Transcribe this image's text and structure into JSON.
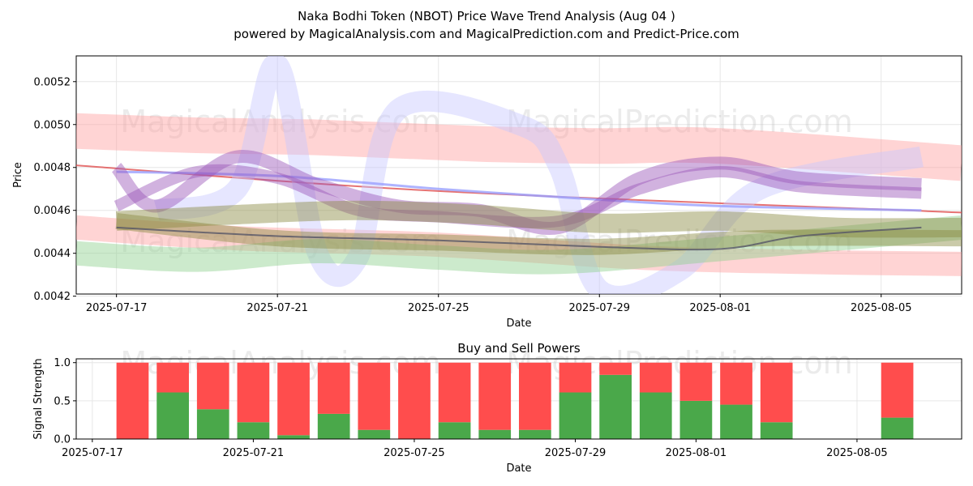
{
  "title_line1": "Naka Bodhi Token (NBOT) Price Wave Trend Analysis (Aug 04 )",
  "title_line2": "powered by MagicalAnalysis.com and MagicalPrediction.com and Predict-Price.com",
  "watermarks": [
    "MagicalAnalysis.com",
    "MagicalPrediction.com"
  ],
  "colors": {
    "buy": "#4aa84a",
    "sell": "#ff4d4d",
    "red_band": "#ff9f9f",
    "blue_band": "#c8c8ff",
    "green_band": "#8fd08f",
    "purple_band": "#9a55b8",
    "olive_band": "#8a8a40"
  },
  "chart_data": [
    {
      "type": "line",
      "title": "",
      "xlabel": "Date",
      "ylabel": "Price",
      "ylim": [
        0.00421,
        0.00532
      ],
      "xlim": [
        "2025-07-16",
        "2025-08-07"
      ],
      "xticks": [
        "2025-07-17",
        "2025-07-21",
        "2025-07-25",
        "2025-07-29",
        "2025-08-01",
        "2025-08-05"
      ],
      "yticks": [
        "0.0042",
        "0.0044",
        "0.0046",
        "0.0048",
        "0.0050",
        "0.0052"
      ],
      "grid": true,
      "series": [
        {
          "name": "red wide band",
          "color": "#ff9f9f",
          "width": 44,
          "x": [
            "2025-07-16",
            "2025-07-19",
            "2025-07-22",
            "2025-07-26",
            "2025-07-29",
            "2025-08-01",
            "2025-08-07"
          ],
          "y": [
            0.00497,
            0.00495,
            0.00494,
            0.00491,
            0.0049,
            0.0049,
            0.00482
          ]
        },
        {
          "name": "red lower band",
          "color": "#ff9f9f",
          "width": 30,
          "x": [
            "2025-07-16",
            "2025-07-20",
            "2025-07-25",
            "2025-07-30",
            "2025-08-03",
            "2025-08-07"
          ],
          "y": [
            0.00452,
            0.00447,
            0.00444,
            0.00438,
            0.00436,
            0.00435
          ]
        },
        {
          "name": "red trend line",
          "color": "#e05050",
          "width": 2,
          "x": [
            "2025-07-16",
            "2025-07-25",
            "2025-08-07"
          ],
          "y": [
            0.00481,
            0.00469,
            0.00459
          ]
        },
        {
          "name": "blue wave",
          "color": "#c8c8ff",
          "width": 26,
          "x": [
            "2025-07-18",
            "2025-07-20",
            "2025-07-21",
            "2025-07-22",
            "2025-07-23",
            "2025-07-24",
            "2025-07-27",
            "2025-07-28",
            "2025-07-29",
            "2025-07-31",
            "2025-08-02",
            "2025-08-06"
          ],
          "y": [
            0.0046,
            0.0047,
            0.00528,
            0.0044,
            0.00438,
            0.00507,
            0.005,
            0.0048,
            0.00423,
            0.00432,
            0.0047,
            0.00485
          ]
        },
        {
          "name": "blue trend line",
          "color": "#9aa0ff",
          "width": 3,
          "x": [
            "2025-07-17",
            "2025-07-21",
            "2025-07-25",
            "2025-07-29",
            "2025-08-01",
            "2025-08-06"
          ],
          "y": [
            0.00478,
            0.00476,
            0.0047,
            0.00465,
            0.00462,
            0.0046
          ]
        },
        {
          "name": "green band",
          "color": "#8fd08f",
          "width": 30,
          "x": [
            "2025-07-16",
            "2025-07-19",
            "2025-07-22",
            "2025-07-25",
            "2025-07-28",
            "2025-08-01",
            "2025-08-07"
          ],
          "y": [
            0.0044,
            0.00437,
            0.00441,
            0.00438,
            0.00436,
            0.00442,
            0.00452
          ]
        },
        {
          "name": "purple wave 1",
          "color": "#9a55b8",
          "width": 16,
          "x": [
            "2025-07-17",
            "2025-07-18",
            "2025-07-20",
            "2025-07-22",
            "2025-07-24",
            "2025-07-26",
            "2025-07-28",
            "2025-07-30",
            "2025-08-01",
            "2025-08-03",
            "2025-08-06"
          ],
          "y": [
            0.0048,
            0.00462,
            0.00485,
            0.00472,
            0.00462,
            0.0046,
            0.00452,
            0.00475,
            0.00482,
            0.00475,
            0.00472
          ]
        },
        {
          "name": "purple wave 2",
          "color": "#9a55b8",
          "width": 14,
          "x": [
            "2025-07-17",
            "2025-07-19",
            "2025-07-21",
            "2025-07-23",
            "2025-07-25",
            "2025-07-28",
            "2025-07-30",
            "2025-08-01",
            "2025-08-03",
            "2025-08-06"
          ],
          "y": [
            0.00462,
            0.00478,
            0.00475,
            0.0046,
            0.00457,
            0.00455,
            0.0047,
            0.00478,
            0.00471,
            0.00468
          ]
        },
        {
          "name": "olive band",
          "color": "#8a8a40",
          "width": 24,
          "x": [
            "2025-07-17",
            "2025-07-20",
            "2025-07-23",
            "2025-07-26",
            "2025-07-29",
            "2025-08-01",
            "2025-08-04",
            "2025-08-07"
          ],
          "y": [
            0.00455,
            0.00458,
            0.0046,
            0.00458,
            0.00454,
            0.00455,
            0.00452,
            0.00452
          ]
        },
        {
          "name": "olive lower band",
          "color": "#8a8a40",
          "width": 20,
          "x": [
            "2025-07-17",
            "2025-07-21",
            "2025-07-25",
            "2025-07-29",
            "2025-08-02",
            "2025-08-07"
          ],
          "y": [
            0.00455,
            0.00447,
            0.00445,
            0.00443,
            0.00447,
            0.00447
          ]
        },
        {
          "name": "dark trend line",
          "color": "#555566",
          "width": 2,
          "x": [
            "2025-07-17",
            "2025-07-21",
            "2025-07-25",
            "2025-07-29",
            "2025-08-01",
            "2025-08-03",
            "2025-08-06"
          ],
          "y": [
            0.00452,
            0.00448,
            0.00446,
            0.00443,
            0.00442,
            0.00448,
            0.00452
          ]
        }
      ]
    },
    {
      "type": "bar",
      "stacked": true,
      "title": "Buy and Sell Powers",
      "xlabel": "Date",
      "ylabel": "Signal Strength",
      "ylim": [
        0,
        1.05
      ],
      "xlim": [
        "2025-07-16.6",
        "2025-08-07.6"
      ],
      "xticks": [
        "2025-07-17",
        "2025-07-21",
        "2025-07-25",
        "2025-07-29",
        "2025-08-01",
        "2025-08-05"
      ],
      "yticks": [
        "0.0",
        "0.5",
        "1.0"
      ],
      "grid": true,
      "categories": [
        "2025-07-18",
        "2025-07-19",
        "2025-07-20",
        "2025-07-21",
        "2025-07-22",
        "2025-07-23",
        "2025-07-24",
        "2025-07-25",
        "2025-07-26",
        "2025-07-27",
        "2025-07-28",
        "2025-07-29",
        "2025-07-30",
        "2025-07-31",
        "2025-08-01",
        "2025-08-02",
        "2025-08-03",
        "2025-08-06"
      ],
      "series": [
        {
          "name": "Buy",
          "color": "#4aa84a",
          "values": [
            0.0,
            0.61,
            0.39,
            0.22,
            0.05,
            0.33,
            0.12,
            0.0,
            0.22,
            0.12,
            0.12,
            0.61,
            0.84,
            0.61,
            0.5,
            0.45,
            0.22,
            0.28
          ]
        },
        {
          "name": "Sell",
          "color": "#ff4d4d",
          "values": [
            1.0,
            0.39,
            0.61,
            0.78,
            0.95,
            0.67,
            0.88,
            1.0,
            0.78,
            0.88,
            0.88,
            0.39,
            0.16,
            0.39,
            0.5,
            0.55,
            0.78,
            0.72
          ]
        }
      ]
    }
  ]
}
